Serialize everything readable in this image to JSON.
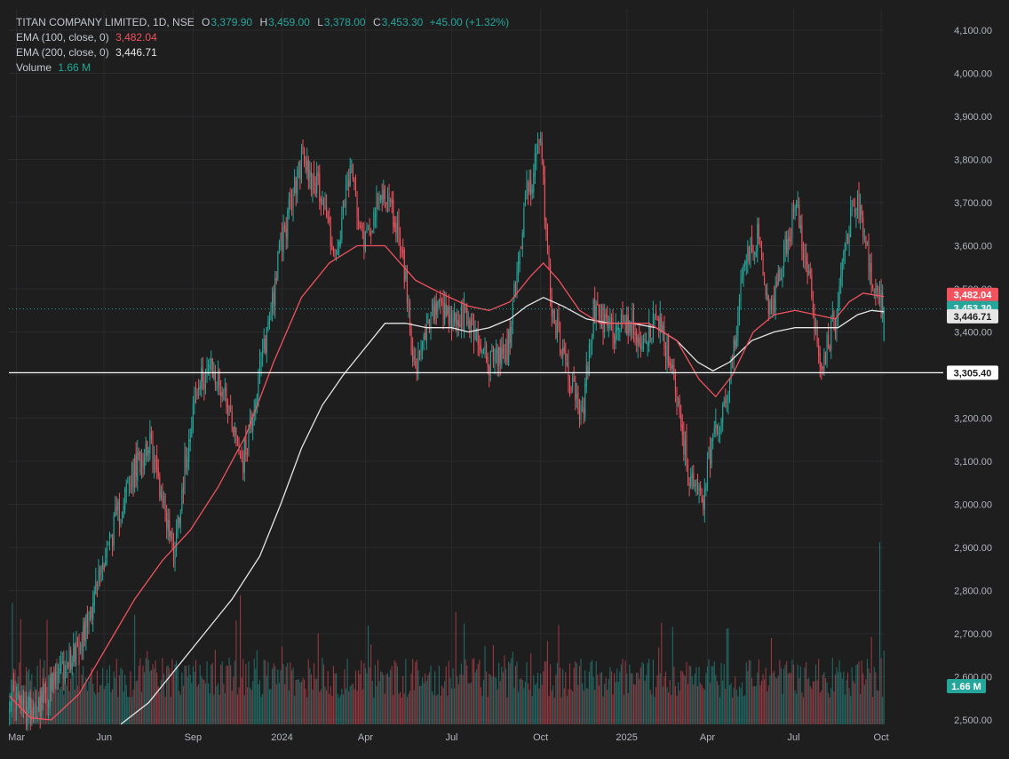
{
  "legend": {
    "title": "TITAN COMPANY LIMITED, 1D, NSE",
    "o_label": "O",
    "o_value": "3,379.90",
    "h_label": "H",
    "h_value": "3,459.00",
    "l_label": "L",
    "l_value": "3,378.00",
    "c_label": "C",
    "c_value": "3,453.30",
    "change": "+45.00 (+1.32%)",
    "ema100_label": "EMA (100, close, 0)",
    "ema100_value": "3,482.04",
    "ema200_label": "EMA (200, close, 0)",
    "ema200_value": "3,446.71",
    "volume_label": "Volume",
    "volume_value": "1.66 M"
  },
  "colors": {
    "background": "#1e1e1f",
    "up": "#26a69a",
    "down": "#f0525e",
    "ema100": "#f0525e",
    "ema200": "#e6e6e6",
    "grid": "#2a2b2e"
  },
  "chart_data": {
    "type": "candlestick",
    "title": "TITAN COMPANY LIMITED, 1D, NSE",
    "ylim": [
      2480,
      4130
    ],
    "y_ticks": [
      "4,100.00",
      "4,000.00",
      "3,900.00",
      "3,800.00",
      "3,700.00",
      "3,600.00",
      "3,500.00",
      "3,400.00",
      "3,300.00",
      "3,200.00",
      "3,100.00",
      "3,000.00",
      "2,900.00",
      "2,800.00",
      "2,700.00",
      "2,600.00",
      "2,500.00"
    ],
    "y_tick_values": [
      4100,
      4000,
      3900,
      3800,
      3700,
      3600,
      3500,
      3400,
      3300,
      3200,
      3100,
      3000,
      2900,
      2800,
      2700,
      2600,
      2500
    ],
    "x_ticks": [
      {
        "label": "Mar",
        "index": 5
      },
      {
        "label": "Jun",
        "index": 68
      },
      {
        "label": "Sep",
        "index": 132
      },
      {
        "label": "2024",
        "index": 196
      },
      {
        "label": "Apr",
        "index": 256
      },
      {
        "label": "Jul",
        "index": 318
      },
      {
        "label": "Oct",
        "index": 382
      },
      {
        "label": "2025",
        "index": 444
      },
      {
        "label": "Apr",
        "index": 502
      },
      {
        "label": "Jul",
        "index": 564
      },
      {
        "label": "Oct",
        "index": 627
      }
    ],
    "total_bars": 630,
    "close_anchors": [
      [
        0,
        2560
      ],
      [
        12,
        2520
      ],
      [
        25,
        2550
      ],
      [
        40,
        2620
      ],
      [
        55,
        2720
      ],
      [
        70,
        2900
      ],
      [
        85,
        3040
      ],
      [
        100,
        3150
      ],
      [
        110,
        3020
      ],
      [
        118,
        2890
      ],
      [
        132,
        3230
      ],
      [
        142,
        3320
      ],
      [
        155,
        3260
      ],
      [
        168,
        3100
      ],
      [
        180,
        3300
      ],
      [
        195,
        3600
      ],
      [
        210,
        3800
      ],
      [
        225,
        3720
      ],
      [
        235,
        3560
      ],
      [
        245,
        3780
      ],
      [
        255,
        3620
      ],
      [
        270,
        3730
      ],
      [
        282,
        3600
      ],
      [
        292,
        3300
      ],
      [
        305,
        3450
      ],
      [
        318,
        3420
      ],
      [
        330,
        3430
      ],
      [
        345,
        3330
      ],
      [
        358,
        3350
      ],
      [
        372,
        3720
      ],
      [
        382,
        3830
      ],
      [
        390,
        3450
      ],
      [
        400,
        3330
      ],
      [
        412,
        3200
      ],
      [
        420,
        3450
      ],
      [
        432,
        3400
      ],
      [
        444,
        3430
      ],
      [
        456,
        3380
      ],
      [
        466,
        3430
      ],
      [
        478,
        3300
      ],
      [
        488,
        3080
      ],
      [
        498,
        3000
      ],
      [
        506,
        3150
      ],
      [
        518,
        3280
      ],
      [
        528,
        3550
      ],
      [
        538,
        3620
      ],
      [
        548,
        3430
      ],
      [
        558,
        3600
      ],
      [
        566,
        3690
      ],
      [
        576,
        3500
      ],
      [
        584,
        3320
      ],
      [
        594,
        3430
      ],
      [
        604,
        3660
      ],
      [
        612,
        3700
      ],
      [
        620,
        3500
      ],
      [
        629,
        3453.3
      ]
    ],
    "ema100": {
      "name": "EMA (100, close, 0)",
      "last": 3482.04,
      "points": [
        [
          0,
          2555
        ],
        [
          15,
          2505
        ],
        [
          30,
          2500
        ],
        [
          50,
          2560
        ],
        [
          70,
          2670
        ],
        [
          90,
          2780
        ],
        [
          110,
          2870
        ],
        [
          130,
          2940
        ],
        [
          150,
          3040
        ],
        [
          170,
          3160
        ],
        [
          190,
          3330
        ],
        [
          210,
          3480
        ],
        [
          230,
          3560
        ],
        [
          250,
          3600
        ],
        [
          270,
          3600
        ],
        [
          292,
          3520
        ],
        [
          310,
          3490
        ],
        [
          330,
          3460
        ],
        [
          345,
          3450
        ],
        [
          360,
          3470
        ],
        [
          375,
          3530
        ],
        [
          384,
          3560
        ],
        [
          395,
          3520
        ],
        [
          410,
          3450
        ],
        [
          425,
          3420
        ],
        [
          444,
          3420
        ],
        [
          460,
          3420
        ],
        [
          480,
          3380
        ],
        [
          496,
          3290
        ],
        [
          508,
          3250
        ],
        [
          520,
          3300
        ],
        [
          535,
          3400
        ],
        [
          550,
          3440
        ],
        [
          565,
          3450
        ],
        [
          580,
          3440
        ],
        [
          594,
          3430
        ],
        [
          604,
          3470
        ],
        [
          614,
          3490
        ],
        [
          629,
          3482.04
        ]
      ]
    },
    "ema200": {
      "name": "EMA (200, close, 0)",
      "last": 3446.71,
      "points": [
        [
          80,
          2490
        ],
        [
          100,
          2540
        ],
        [
          120,
          2620
        ],
        [
          140,
          2700
        ],
        [
          160,
          2780
        ],
        [
          180,
          2880
        ],
        [
          195,
          3000
        ],
        [
          210,
          3130
        ],
        [
          225,
          3230
        ],
        [
          240,
          3300
        ],
        [
          255,
          3360
        ],
        [
          270,
          3420
        ],
        [
          285,
          3420
        ],
        [
          300,
          3410
        ],
        [
          318,
          3410
        ],
        [
          330,
          3400
        ],
        [
          345,
          3410
        ],
        [
          360,
          3430
        ],
        [
          372,
          3460
        ],
        [
          384,
          3480
        ],
        [
          398,
          3460
        ],
        [
          415,
          3430
        ],
        [
          432,
          3420
        ],
        [
          448,
          3420
        ],
        [
          465,
          3410
        ],
        [
          480,
          3380
        ],
        [
          495,
          3330
        ],
        [
          506,
          3310
        ],
        [
          518,
          3330
        ],
        [
          534,
          3380
        ],
        [
          550,
          3400
        ],
        [
          565,
          3410
        ],
        [
          580,
          3410
        ],
        [
          596,
          3410
        ],
        [
          610,
          3440
        ],
        [
          620,
          3450
        ],
        [
          629,
          3446.71
        ]
      ]
    },
    "volume": {
      "name": "Volume",
      "last": "1.66 M",
      "scale_max": 5.0
    },
    "last_price": {
      "value": 3453.3,
      "label": "3,453.30"
    },
    "horizontal_line": {
      "value": 3305.4,
      "label": "3,305.40"
    },
    "ema100_tag": "3,482.04",
    "ema200_tag": "3,446.71",
    "volume_tag": "1.66 M"
  }
}
